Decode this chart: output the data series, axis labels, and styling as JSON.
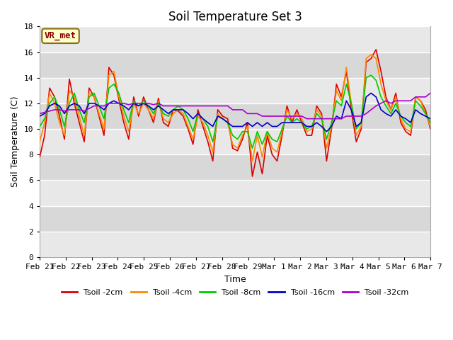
{
  "title": "Soil Temperature Set 3",
  "xlabel": "Time",
  "ylabel": "Soil Temperature (C)",
  "ylim": [
    0,
    18
  ],
  "yticks": [
    0,
    2,
    4,
    6,
    8,
    10,
    12,
    14,
    16,
    18
  ],
  "annotation": "VR_met",
  "legend": [
    "Tsoil -2cm",
    "Tsoil -4cm",
    "Tsoil -8cm",
    "Tsoil -16cm",
    "Tsoil -32cm"
  ],
  "colors": [
    "#dd0000",
    "#ff8800",
    "#00cc00",
    "#0000cc",
    "#aa00cc"
  ],
  "linewidth": 1.2,
  "title_fontsize": 12,
  "axis_fontsize": 9,
  "tick_fontsize": 8,
  "xtick_labels": [
    "Feb 21",
    "Feb 22",
    "Feb 23",
    "Feb 24",
    "Feb 25",
    "Feb 26",
    "Feb 27",
    "Feb 28",
    "Feb 29",
    "Mar 1",
    "Mar 2",
    "Mar 3",
    "Mar 4",
    "Mar 5",
    "Mar 6",
    "Mar 7"
  ],
  "tsoil_2cm": [
    7.8,
    9.5,
    13.2,
    12.5,
    11.0,
    9.2,
    13.9,
    12.0,
    10.5,
    9.0,
    13.2,
    12.5,
    11.0,
    9.5,
    14.8,
    14.2,
    12.3,
    10.5,
    9.2,
    12.5,
    11.0,
    12.5,
    11.5,
    10.5,
    12.4,
    10.5,
    10.2,
    11.5,
    11.4,
    11.0,
    10.0,
    8.8,
    11.5,
    10.2,
    9.0,
    7.5,
    11.5,
    11.0,
    10.8,
    8.5,
    8.3,
    9.2,
    10.5,
    6.3,
    8.2,
    6.5,
    9.5,
    8.0,
    7.5,
    9.5,
    11.8,
    10.5,
    11.5,
    10.5,
    9.5,
    9.5,
    11.8,
    11.2,
    7.5,
    10.0,
    13.5,
    12.5,
    14.5,
    11.5,
    9.0,
    10.0,
    15.2,
    15.5,
    16.2,
    14.5,
    12.5,
    11.5,
    12.8,
    10.5,
    9.8,
    9.5,
    12.5,
    12.2,
    11.5,
    10.0
  ],
  "tsoil_4cm": [
    9.0,
    10.5,
    12.8,
    12.0,
    10.5,
    9.5,
    13.0,
    12.5,
    11.0,
    9.5,
    12.8,
    12.5,
    11.2,
    10.0,
    14.2,
    14.5,
    12.5,
    11.0,
    9.8,
    12.0,
    11.2,
    12.0,
    11.5,
    10.8,
    12.2,
    10.8,
    10.5,
    11.2,
    11.5,
    11.2,
    10.2,
    9.2,
    11.0,
    10.5,
    9.5,
    8.2,
    11.2,
    10.8,
    10.5,
    8.8,
    8.5,
    9.5,
    10.2,
    7.5,
    9.5,
    7.8,
    9.8,
    8.5,
    8.2,
    9.8,
    11.5,
    10.8,
    11.2,
    10.8,
    9.8,
    10.0,
    11.5,
    11.0,
    8.5,
    10.2,
    13.0,
    12.2,
    14.8,
    12.0,
    9.5,
    10.2,
    15.5,
    15.8,
    15.5,
    13.5,
    12.2,
    11.5,
    12.5,
    10.8,
    10.0,
    9.8,
    12.5,
    12.2,
    11.2,
    10.2
  ],
  "tsoil_8cm": [
    10.2,
    10.8,
    12.0,
    12.5,
    11.5,
    10.2,
    12.0,
    12.8,
    11.5,
    10.5,
    12.5,
    12.8,
    11.8,
    10.8,
    13.2,
    13.5,
    12.8,
    11.5,
    10.5,
    12.2,
    11.8,
    12.2,
    11.8,
    11.2,
    12.0,
    11.2,
    11.0,
    11.5,
    11.8,
    11.5,
    10.8,
    9.8,
    11.2,
    10.8,
    10.2,
    9.0,
    11.0,
    10.8,
    10.5,
    9.5,
    9.2,
    9.8,
    9.8,
    8.5,
    9.8,
    8.8,
    9.8,
    9.2,
    9.0,
    10.0,
    11.0,
    10.5,
    10.8,
    10.5,
    10.0,
    10.2,
    11.2,
    10.8,
    9.2,
    10.5,
    12.2,
    11.8,
    13.5,
    12.0,
    10.0,
    10.5,
    14.0,
    14.2,
    13.8,
    12.5,
    11.8,
    11.2,
    12.0,
    11.0,
    10.5,
    10.2,
    12.2,
    11.8,
    11.2,
    10.5
  ],
  "tsoil_16cm": [
    11.0,
    11.2,
    11.8,
    12.0,
    11.8,
    11.2,
    11.8,
    12.0,
    11.8,
    11.2,
    12.0,
    12.0,
    11.8,
    11.5,
    12.0,
    12.2,
    12.0,
    11.8,
    11.5,
    12.0,
    11.8,
    12.0,
    11.8,
    11.5,
    11.8,
    11.5,
    11.2,
    11.5,
    11.5,
    11.5,
    11.2,
    10.8,
    11.2,
    10.8,
    10.5,
    10.2,
    11.0,
    10.8,
    10.5,
    10.2,
    10.2,
    10.2,
    10.5,
    10.2,
    10.5,
    10.2,
    10.5,
    10.2,
    10.2,
    10.5,
    10.5,
    10.5,
    10.5,
    10.5,
    10.2,
    10.2,
    10.5,
    10.2,
    9.8,
    10.2,
    11.0,
    10.8,
    12.2,
    11.5,
    10.2,
    10.5,
    12.5,
    12.8,
    12.5,
    11.5,
    11.2,
    11.0,
    11.5,
    11.0,
    10.8,
    10.5,
    11.5,
    11.2,
    11.0,
    10.8
  ],
  "tsoil_32cm": [
    11.2,
    11.3,
    11.4,
    11.5,
    11.5,
    11.4,
    11.5,
    11.5,
    11.5,
    11.4,
    11.6,
    11.8,
    11.8,
    11.8,
    12.0,
    12.0,
    12.0,
    12.0,
    11.9,
    12.0,
    12.0,
    12.0,
    12.0,
    11.9,
    12.0,
    11.8,
    11.8,
    11.8,
    11.8,
    11.8,
    11.8,
    11.8,
    11.8,
    11.8,
    11.8,
    11.8,
    11.8,
    11.8,
    11.8,
    11.5,
    11.5,
    11.5,
    11.2,
    11.2,
    11.2,
    11.0,
    11.0,
    11.0,
    11.0,
    11.0,
    11.0,
    11.0,
    11.0,
    11.0,
    10.8,
    10.8,
    10.8,
    10.8,
    10.8,
    10.8,
    10.8,
    10.8,
    11.0,
    11.0,
    11.0,
    11.0,
    11.2,
    11.5,
    11.8,
    12.0,
    12.2,
    12.0,
    12.2,
    12.2,
    12.2,
    12.2,
    12.5,
    12.5,
    12.5,
    12.8
  ],
  "band_colors": [
    "#e8e8e8",
    "#d8d8d8",
    "#e8e8e8",
    "#d8d8d8",
    "#e8e8e8",
    "#d8d8d8",
    "#e8e8e8",
    "#d8d8d8",
    "#e8e8e8"
  ]
}
